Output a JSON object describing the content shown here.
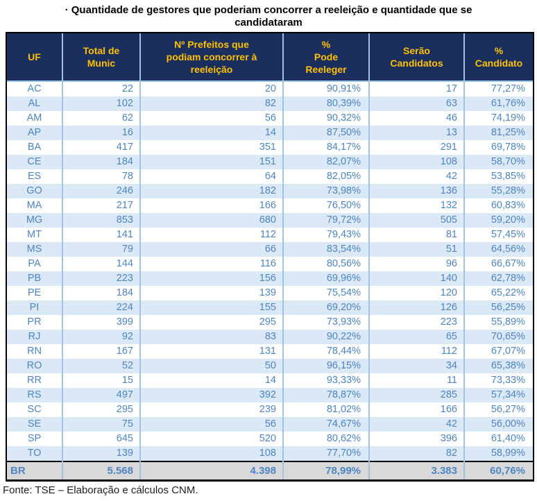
{
  "title": "· Quantidade de gestores que poderiam concorrer a reeleição e quantidade que se\ncandidataram",
  "source": "Fonte: TSE – Elaboração e cálculos CNM.",
  "colors": {
    "header_bg": "#1B2F5E",
    "header_text": "#FFC000",
    "data_text": "#4C85C6",
    "stripe_bg": "#DBE8F6",
    "total_row_bg": "#D9D9D9",
    "cell_border": "#9DC3E6",
    "outer_border": "#000000"
  },
  "table": {
    "headers": [
      "UF",
      "Total de\nMunic",
      "Nº Prefeitos que\npodiam concorrer à\nreeleição",
      "%\nPode\nReeleger",
      "Serão\nCandidatos",
      "%\nCandidato"
    ],
    "header_keys": [
      "uf",
      "total-munic",
      "prefeitos-podiam-reeleicao",
      "pct-pode-reeleger",
      "serao-candidatos",
      "pct-candidato"
    ],
    "pct_columns": [
      3,
      5
    ],
    "rows": [
      [
        "AC",
        "22",
        "20",
        "90,91%",
        "17",
        "77,27%"
      ],
      [
        "AL",
        "102",
        "82",
        "80,39%",
        "63",
        "61,76%"
      ],
      [
        "AM",
        "62",
        "56",
        "90,32%",
        "46",
        "74,19%"
      ],
      [
        "AP",
        "16",
        "14",
        "87,50%",
        "13",
        "81,25%"
      ],
      [
        "BA",
        "417",
        "351",
        "84,17%",
        "291",
        "69,78%"
      ],
      [
        "CE",
        "184",
        "151",
        "82,07%",
        "108",
        "58,70%"
      ],
      [
        "ES",
        "78",
        "64",
        "82,05%",
        "42",
        "53,85%"
      ],
      [
        "GO",
        "246",
        "182",
        "73,98%",
        "136",
        "55,28%"
      ],
      [
        "MA",
        "217",
        "166",
        "76,50%",
        "132",
        "60,83%"
      ],
      [
        "MG",
        "853",
        "680",
        "79,72%",
        "505",
        "59,20%"
      ],
      [
        "MT",
        "141",
        "112",
        "79,43%",
        "81",
        "57,45%"
      ],
      [
        "MS",
        "79",
        "66",
        "83,54%",
        "51",
        "64,56%"
      ],
      [
        "PA",
        "144",
        "116",
        "80,56%",
        "96",
        "66,67%"
      ],
      [
        "PB",
        "223",
        "156",
        "69,96%",
        "140",
        "62,78%"
      ],
      [
        "PE",
        "184",
        "139",
        "75,54%",
        "120",
        "65,22%"
      ],
      [
        "PI",
        "224",
        "155",
        "69,20%",
        "126",
        "56,25%"
      ],
      [
        "PR",
        "399",
        "295",
        "73,93%",
        "223",
        "55,89%"
      ],
      [
        "RJ",
        "92",
        "83",
        "90,22%",
        "65",
        "70,65%"
      ],
      [
        "RN",
        "167",
        "131",
        "78,44%",
        "112",
        "67,07%"
      ],
      [
        "RO",
        "52",
        "50",
        "96,15%",
        "34",
        "65,38%"
      ],
      [
        "RR",
        "15",
        "14",
        "93,33%",
        "11",
        "73,33%"
      ],
      [
        "RS",
        "497",
        "392",
        "78,87%",
        "285",
        "57,34%"
      ],
      [
        "SC",
        "295",
        "239",
        "81,02%",
        "166",
        "56,27%"
      ],
      [
        "SE",
        "75",
        "56",
        "74,67%",
        "42",
        "56,00%"
      ],
      [
        "SP",
        "645",
        "520",
        "80,62%",
        "396",
        "61,40%"
      ],
      [
        "TO",
        "139",
        "108",
        "77,70%",
        "82",
        "58,99%"
      ]
    ],
    "total_row": [
      "BR",
      "5.568",
      "4.398",
      "78,99%",
      "3.383",
      "60,76%"
    ]
  }
}
